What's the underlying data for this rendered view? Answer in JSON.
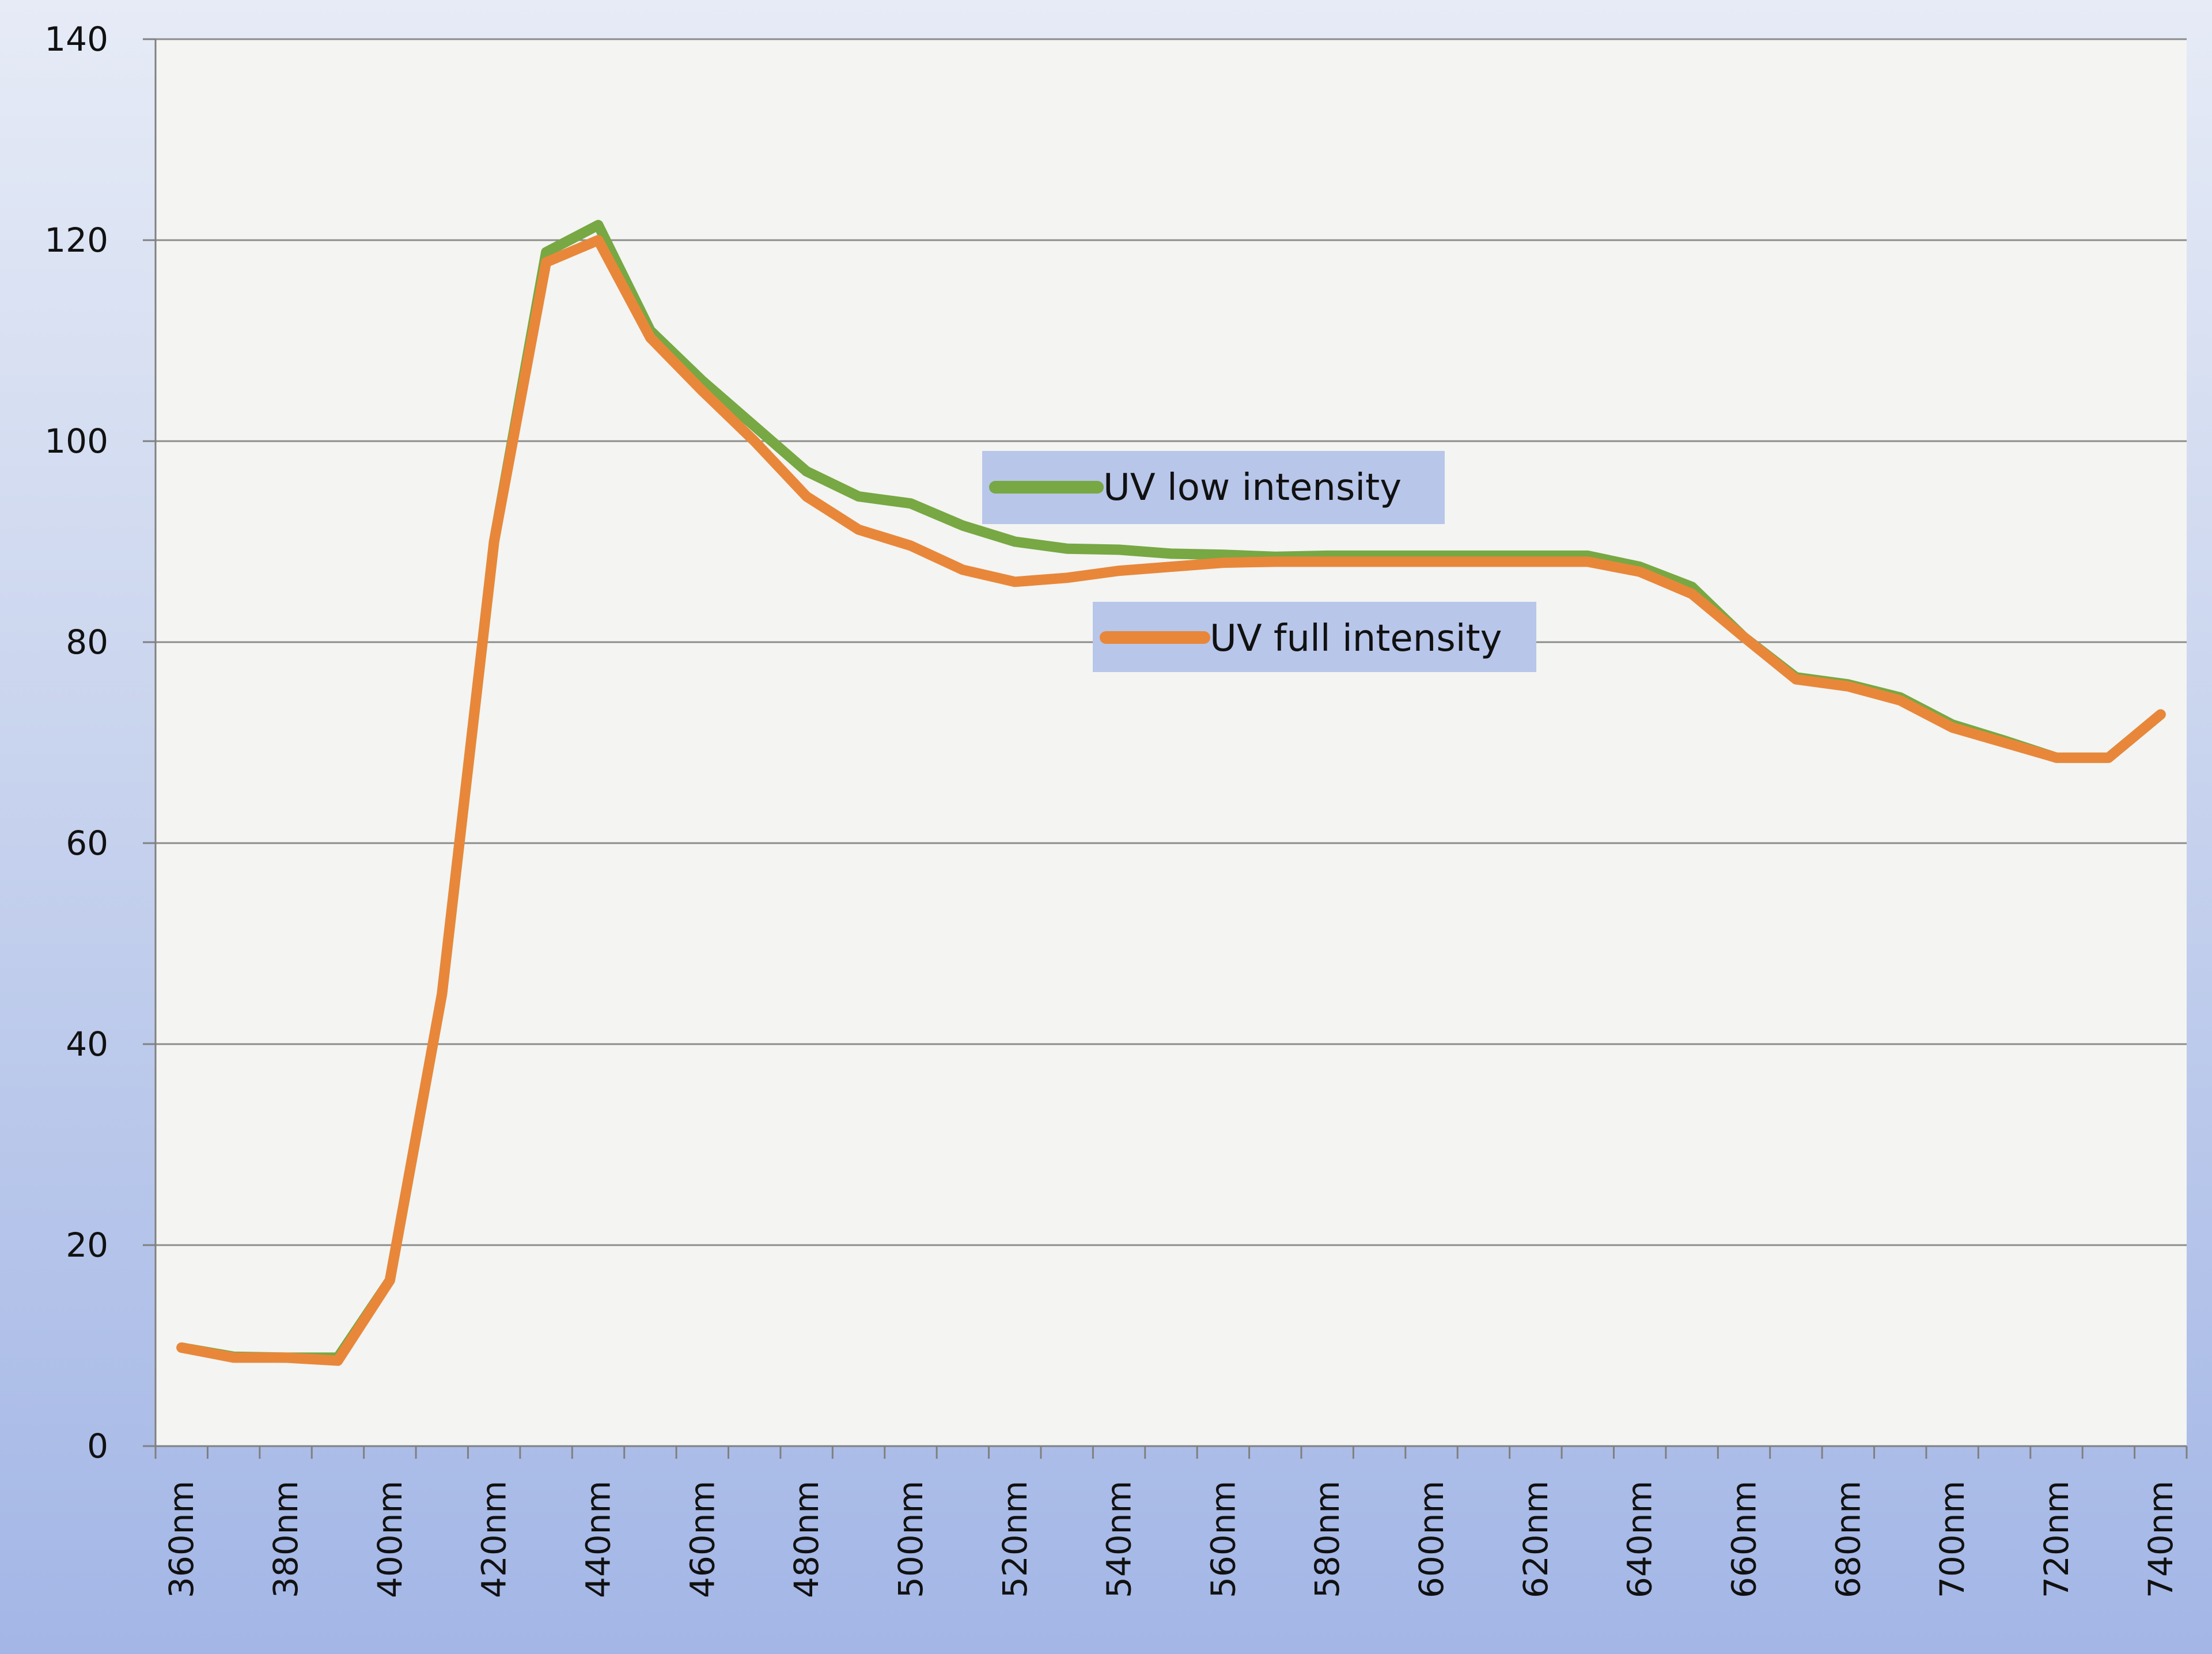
{
  "chart_data": {
    "type": "line",
    "title": "",
    "xlabel": "",
    "ylabel": "",
    "ylim": [
      0,
      140
    ],
    "yticks": [
      "0",
      "20",
      "40",
      "60",
      "80",
      "100",
      "120",
      "140"
    ],
    "x_tick_labels": [
      "360nm",
      "380nm",
      "400nm",
      "420nm",
      "440nm",
      "460nm",
      "480nm",
      "500nm",
      "520nm",
      "540nm",
      "560nm",
      "580nm",
      "600nm",
      "620nm",
      "640nm",
      "660nm",
      "680nm",
      "700nm",
      "720nm",
      "740nm"
    ],
    "categories": [
      "360nm",
      "370nm",
      "380nm",
      "390nm",
      "400nm",
      "410nm",
      "420nm",
      "430nm",
      "440nm",
      "450nm",
      "460nm",
      "470nm",
      "480nm",
      "490nm",
      "500nm",
      "510nm",
      "520nm",
      "530nm",
      "540nm",
      "550nm",
      "560nm",
      "570nm",
      "580nm",
      "590nm",
      "600nm",
      "610nm",
      "620nm",
      "630nm",
      "640nm",
      "650nm",
      "660nm",
      "670nm",
      "680nm",
      "690nm",
      "700nm",
      "710nm",
      "720nm",
      "730nm",
      "740nm"
    ],
    "grid": true,
    "series": [
      {
        "name": "UV low intensity",
        "color": "#77a843",
        "values": [
          9.8,
          8.9,
          8.8,
          8.8,
          16.5,
          45,
          90,
          118.8,
          121.5,
          111,
          106,
          101.5,
          97,
          94.5,
          93.8,
          91.6,
          90,
          89.3,
          89.2,
          88.8,
          88.7,
          88.5,
          88.6,
          88.6,
          88.6,
          88.6,
          88.6,
          88.6,
          87.5,
          85.5,
          80.5,
          76.5,
          75.8,
          74.5,
          71.8,
          70.2,
          68.5,
          68.5,
          72.8
        ]
      },
      {
        "name": "UV full intensity",
        "color": "#e8873a",
        "values": [
          9.8,
          8.8,
          8.8,
          8.5,
          16.5,
          45,
          90,
          117.8,
          120,
          110.3,
          105,
          100,
          94.5,
          91.2,
          89.6,
          87.2,
          86,
          86.4,
          87.1,
          87.5,
          87.9,
          88,
          88,
          88,
          88,
          88,
          88,
          88,
          87,
          84.8,
          80.5,
          76.3,
          75.6,
          74.2,
          71.5,
          70,
          68.5,
          68.5,
          72.8
        ]
      }
    ],
    "legend": [
      {
        "label": "UV low intensity",
        "color": "#77a843"
      },
      {
        "label": "UV full intensity",
        "color": "#e8873a"
      }
    ]
  }
}
